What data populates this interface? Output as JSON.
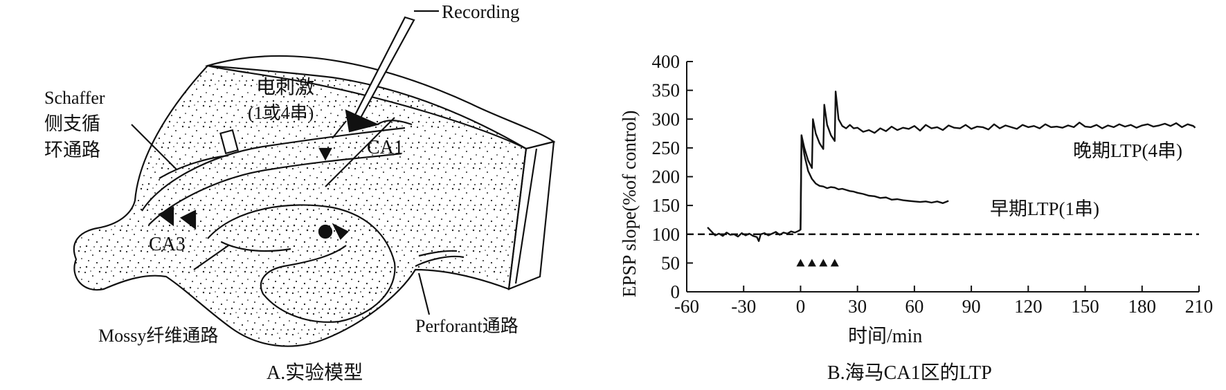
{
  "panel_a": {
    "caption": "A.实验模型",
    "labels": {
      "recording": "Recording",
      "stim_line1": "电刺激",
      "stim_line2": "(1或4串)",
      "ca1": "CA1",
      "ca3": "CA3",
      "schaffer_line1": "Schaffer",
      "schaffer_line2": "侧支循",
      "schaffer_line3": "环通路",
      "mossy": "Mossy纤维通路",
      "perforant": "Perforant通路"
    }
  },
  "panel_b": {
    "caption": "B.海马CA1区的LTP",
    "chart_data": {
      "type": "line",
      "xlabel": "时间/min",
      "ylabel": "EPSP slope(%of control)",
      "xlim": [
        -60,
        210
      ],
      "ylim": [
        0,
        400
      ],
      "x_ticks": [
        "-60",
        "-30",
        "0",
        "30",
        "60",
        "90",
        "120",
        "150",
        "180",
        "210"
      ],
      "y_ticks": [
        "0",
        "50",
        "100",
        "150",
        "200",
        "250",
        "300",
        "350",
        "400"
      ],
      "x_tick_values": [
        -60,
        -30,
        0,
        30,
        60,
        90,
        120,
        150,
        180,
        210
      ],
      "y_tick_values": [
        0,
        50,
        100,
        150,
        200,
        250,
        300,
        350,
        400
      ],
      "baseline": 100,
      "stimulus_markers_x": [
        0,
        6,
        12,
        18
      ],
      "stimulus_marker_y": 50,
      "series": [
        {
          "name": "晚期LTP(4串)",
          "x": [
            -49,
            -47,
            -45,
            -43,
            -41,
            -39,
            -37,
            -35,
            -33,
            -31,
            -29,
            -27,
            -25,
            -23,
            -22,
            -21,
            -19,
            -17,
            -15,
            -13,
            -11,
            -9,
            -7,
            -5,
            -3,
            -1,
            0,
            0.5,
            2,
            4,
            6,
            6.5,
            8,
            10,
            12,
            12.5,
            14,
            16,
            18,
            18.5,
            20,
            22,
            24,
            26,
            28,
            30,
            33,
            36,
            39,
            42,
            45,
            48,
            51,
            54,
            57,
            60,
            63,
            66,
            69,
            72,
            75,
            78,
            81,
            84,
            87,
            90,
            93,
            96,
            99,
            102,
            105,
            108,
            111,
            114,
            117,
            120,
            123,
            126,
            129,
            132,
            135,
            138,
            141,
            144,
            147,
            150,
            153,
            156,
            159,
            162,
            165,
            168,
            171,
            174,
            177,
            180,
            183,
            186,
            189,
            192,
            195,
            198,
            201,
            204,
            207,
            208
          ],
          "y": [
            112,
            105,
            98,
            101,
            97,
            103,
            99,
            100,
            96,
            102,
            98,
            101,
            97,
            95,
            88,
            100,
            102,
            98,
            101,
            104,
            99,
            103,
            101,
            105,
            103,
            106,
            108,
            272,
            250,
            228,
            215,
            300,
            275,
            258,
            248,
            325,
            290,
            272,
            262,
            348,
            300,
            288,
            284,
            290,
            284,
            285,
            278,
            281,
            276,
            284,
            279,
            287,
            281,
            285,
            283,
            288,
            280,
            290,
            284,
            286,
            281,
            289,
            285,
            284,
            290,
            283,
            287,
            286,
            282,
            291,
            284,
            289,
            286,
            283,
            290,
            286,
            288,
            284,
            291,
            286,
            287,
            285,
            289,
            286,
            294,
            287,
            286,
            290,
            284,
            289,
            286,
            291,
            287,
            290,
            285,
            289,
            291,
            287,
            289,
            292,
            288,
            293,
            286,
            291,
            288,
            285
          ]
        },
        {
          "name": "早期LTP(1串)",
          "x": [
            0,
            0.5,
            2,
            4,
            6,
            8,
            10,
            12,
            14,
            16,
            18,
            20,
            22,
            24,
            26,
            28,
            30,
            33,
            36,
            39,
            42,
            45,
            48,
            51,
            54,
            57,
            60,
            63,
            66,
            69,
            72,
            75,
            78
          ],
          "y": [
            108,
            272,
            238,
            210,
            196,
            188,
            184,
            183,
            180,
            182,
            181,
            178,
            179,
            177,
            175,
            174,
            172,
            170,
            167,
            166,
            163,
            164,
            160,
            161,
            159,
            158,
            157,
            156,
            157,
            155,
            157,
            154,
            158
          ]
        }
      ]
    }
  }
}
